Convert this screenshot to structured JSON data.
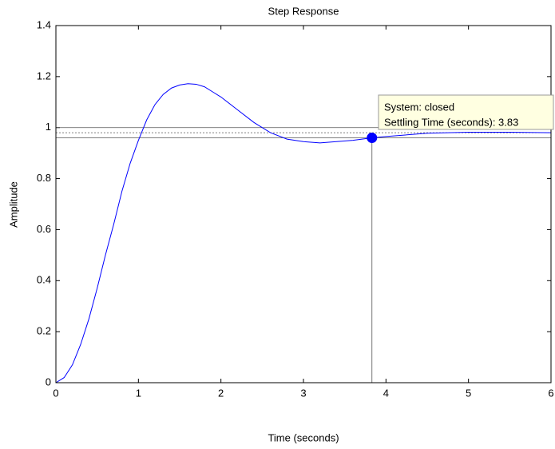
{
  "chart_data": {
    "type": "line",
    "title": "Step Response",
    "xlabel": "Time (seconds)",
    "ylabel": "Amplitude",
    "x": [
      0,
      0.1,
      0.2,
      0.3,
      0.4,
      0.5,
      0.6,
      0.7,
      0.8,
      0.9,
      1.0,
      1.1,
      1.2,
      1.3,
      1.4,
      1.5,
      1.6,
      1.7,
      1.8,
      1.9,
      2.0,
      2.2,
      2.4,
      2.6,
      2.8,
      3.0,
      3.2,
      3.4,
      3.6,
      3.83,
      4.0,
      4.5,
      5.0,
      5.5,
      6.0
    ],
    "values": [
      0,
      0.02,
      0.07,
      0.15,
      0.25,
      0.37,
      0.5,
      0.62,
      0.75,
      0.86,
      0.95,
      1.03,
      1.09,
      1.13,
      1.155,
      1.167,
      1.172,
      1.17,
      1.16,
      1.14,
      1.12,
      1.07,
      1.02,
      0.98,
      0.955,
      0.945,
      0.94,
      0.945,
      0.95,
      0.96,
      0.965,
      0.978,
      0.982,
      0.982,
      0.98
    ],
    "color": "#0000ff",
    "xlim": [
      0,
      6
    ],
    "xticks": [
      0,
      1,
      2,
      3,
      4,
      5,
      6
    ],
    "ylim": [
      0,
      1.4
    ],
    "yticks": [
      0,
      0.2,
      0.4,
      0.6,
      0.8,
      1,
      1.2,
      1.4
    ],
    "grid": false,
    "settling_band": [
      1.0,
      0.98,
      0.96
    ],
    "settling_point": {
      "x": 3.83,
      "y": 0.96
    },
    "datatip": [
      "System: closed",
      "Settling Time (seconds): 3.83"
    ]
  }
}
